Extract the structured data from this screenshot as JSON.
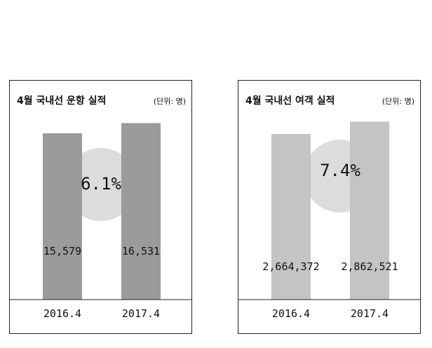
{
  "chart_data": [
    {
      "type": "bar",
      "title": "4월 국내선 운항 실적",
      "unit": "(단위: 명)",
      "categories": [
        "2016.4",
        "2017.4"
      ],
      "values": [
        15579,
        16531
      ],
      "value_labels": [
        "15,579",
        "16,531"
      ],
      "growth_label": "6.1%",
      "ylim": [
        0,
        18400
      ],
      "bar_color": "#9b9b9b",
      "circle_color": "#dcdcdc",
      "grid": false
    },
    {
      "type": "bar",
      "title": "4월 국내선 여객 실적",
      "unit": "(단위: 명)",
      "categories": [
        "2016.4",
        "2017.4"
      ],
      "values": [
        2664372,
        2862521
      ],
      "value_labels": [
        "2,664,372",
        "2,862,521"
      ],
      "growth_label": "7.4%",
      "ylim": [
        0,
        3160000
      ],
      "bar_color": "#c4c4c4",
      "circle_color": "#dcdcdc",
      "grid": false
    }
  ]
}
